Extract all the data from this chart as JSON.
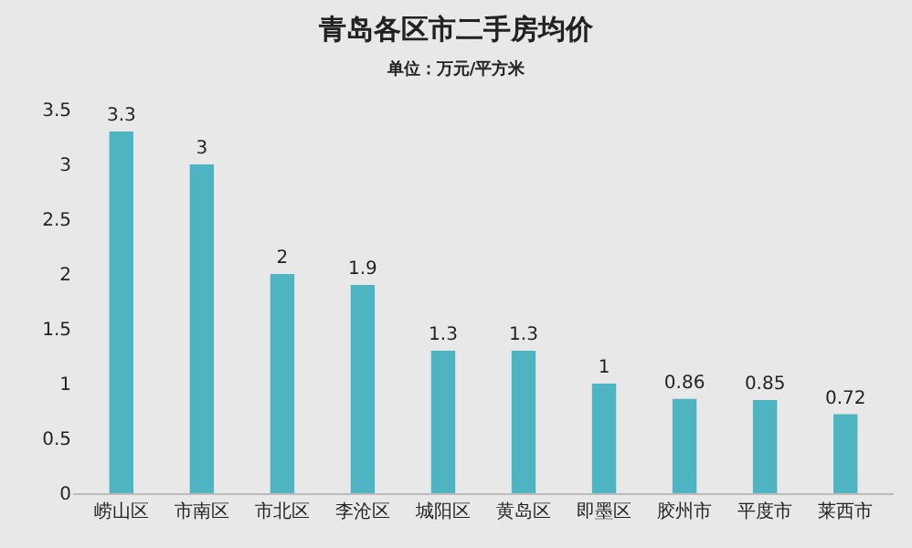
{
  "chart_data": {
    "type": "bar",
    "title": "青岛各区市二手房均价",
    "subtitle": "单位：万元/平方米",
    "categories": [
      "崂山区",
      "市南区",
      "市北区",
      "李沧区",
      "城阳区",
      "黄岛区",
      "即墨区",
      "胶州市",
      "平度市",
      "莱西市"
    ],
    "values": [
      3.3,
      3,
      2,
      1.9,
      1.3,
      1.3,
      1,
      0.86,
      0.85,
      0.72
    ],
    "color": "#4fb4c2",
    "data_labels": true,
    "grid": false,
    "ylim": [
      0,
      3.5
    ],
    "yticks": [
      0,
      0.5,
      1,
      1.5,
      2,
      2.5,
      3,
      3.5
    ]
  }
}
